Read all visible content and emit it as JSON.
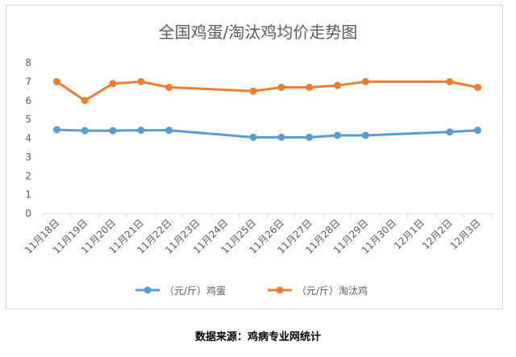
{
  "chart_data": {
    "type": "line",
    "title": "全国鸡蛋/淘汰鸡均价走势图",
    "categories": [
      "11月18日",
      "11月19日",
      "11月20日",
      "11月21日",
      "11月22日",
      "11月23日",
      "11月24日",
      "11月25日",
      "11月26日",
      "11月27日",
      "11月28日",
      "11月29日",
      "11月30日",
      "12月1日",
      "12月2日",
      "12月3日"
    ],
    "series": [
      {
        "name": "（元/斤）鸡蛋",
        "color": "#5b9bd5",
        "values": [
          4.45,
          4.4,
          4.4,
          4.42,
          4.42,
          null,
          null,
          4.05,
          4.05,
          4.05,
          4.15,
          4.15,
          null,
          null,
          4.33,
          4.42
        ]
      },
      {
        "name": "（元/斤）淘汰鸡",
        "color": "#ed7d31",
        "values": [
          7.0,
          6.0,
          6.9,
          7.0,
          6.7,
          null,
          null,
          6.5,
          6.7,
          6.7,
          6.8,
          7.0,
          null,
          null,
          7.0,
          6.7
        ]
      }
    ],
    "ylim": [
      0,
      8
    ],
    "yticks": [
      0,
      1,
      2,
      3,
      4,
      5,
      6,
      7,
      8
    ],
    "grid": false,
    "legend": "bottom",
    "xlabel": "",
    "ylabel": ""
  },
  "source": "数据来源：鸡病专业网统计"
}
